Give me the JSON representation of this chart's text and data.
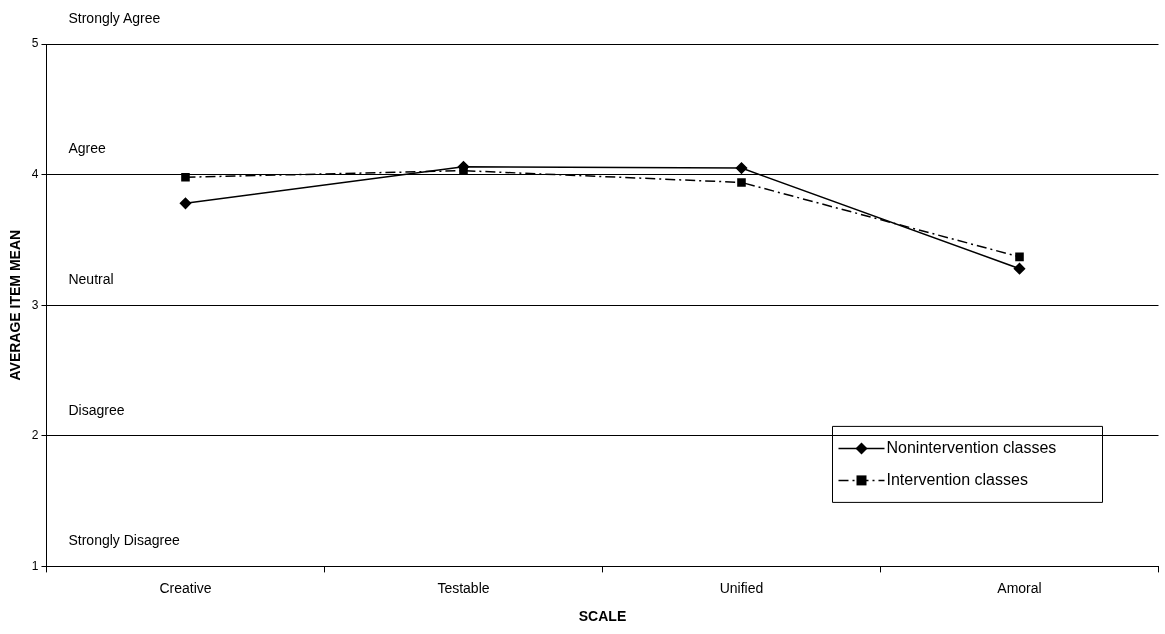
{
  "chart_data": {
    "type": "line",
    "xlabel": "SCALE",
    "ylabel": "AVERAGE ITEM MEAN",
    "categories": [
      "Creative",
      "Testable",
      "Unified",
      "Amoral"
    ],
    "series": [
      {
        "name": "Nonintervention classes",
        "color": "#000000",
        "values": [
          3.78,
          4.06,
          4.05,
          3.28
        ],
        "marker": "diamond",
        "line_style": "solid"
      },
      {
        "name": "Intervention classes",
        "color": "#000000",
        "values": [
          3.98,
          4.03,
          3.94,
          3.37
        ],
        "marker": "square",
        "line_style": "dashed"
      }
    ],
    "ylim": [
      1,
      5
    ],
    "yticks": [
      1,
      2,
      3,
      4,
      5
    ],
    "grid": "y",
    "legend": "bottom right",
    "annotations": [
      "Strongly Agree",
      "Agree",
      "Neutral",
      "Disagree",
      "Strongly Disagree"
    ]
  }
}
